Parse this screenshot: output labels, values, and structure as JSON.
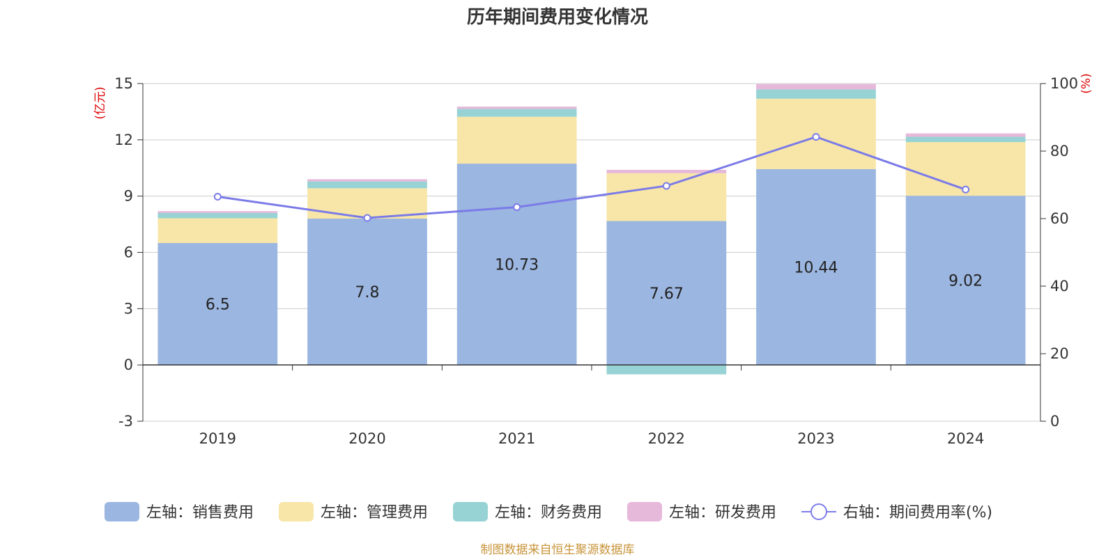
{
  "chart_data": {
    "type": "bar",
    "title": "历年期间费用变化情况",
    "categories": [
      "2019",
      "2020",
      "2021",
      "2022",
      "2023",
      "2024"
    ],
    "y_left_unit": "(亿元)",
    "y_right_unit": "(%)",
    "y_left_ticks": [
      "15",
      "12",
      "9",
      "6",
      "3",
      "0",
      "-3"
    ],
    "y_right_ticks": [
      "100",
      "80",
      "60",
      "40",
      "20",
      "0"
    ],
    "ylim_left": [
      -3,
      15
    ],
    "ylim_right": [
      0,
      100
    ],
    "grid": true,
    "legend_position": "bottom",
    "series": [
      {
        "name": "左轴：销售费用",
        "type": "bar",
        "stack": "cost",
        "color": "#9bb6e0",
        "values": [
          6.5,
          7.8,
          10.73,
          7.67,
          10.44,
          9.02
        ],
        "labels": [
          "6.5",
          "7.8",
          "10.73",
          "7.67",
          "10.44",
          "9.02"
        ]
      },
      {
        "name": "左轴：管理费用",
        "type": "bar",
        "stack": "cost",
        "color": "#f7e6a8",
        "values": [
          1.32,
          1.62,
          2.5,
          2.55,
          3.75,
          2.86
        ]
      },
      {
        "name": "左轴：财务费用",
        "type": "bar",
        "stack": "cost",
        "color": "#97d3d4",
        "values": [
          0.28,
          0.36,
          0.42,
          -0.5,
          0.5,
          0.28
        ]
      },
      {
        "name": "左轴：研发费用",
        "type": "bar",
        "stack": "cost",
        "color": "#e6b8d9",
        "values": [
          0.1,
          0.12,
          0.12,
          0.18,
          0.28,
          0.18
        ]
      },
      {
        "name": "右轴：期间费用率(%)",
        "type": "line",
        "axis": "right",
        "color": "#7b7be8",
        "values": [
          66.5,
          60.2,
          63.4,
          69.7,
          84.2,
          68.6
        ]
      }
    ]
  },
  "footer": {
    "source": "制图数据来自恒生聚源数据库"
  }
}
